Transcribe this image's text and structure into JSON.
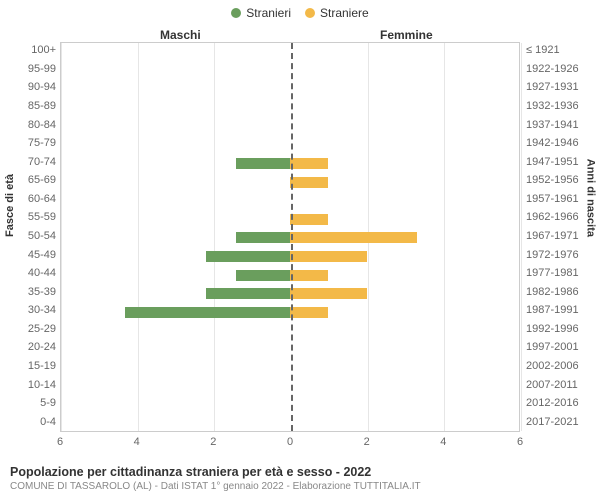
{
  "chart": {
    "type": "population-pyramid",
    "legend": {
      "male": {
        "label": "Stranieri",
        "color": "#6a9e5d"
      },
      "female": {
        "label": "Straniere",
        "color": "#f3b948"
      }
    },
    "column_headers": {
      "left": "Maschi",
      "right": "Femmine"
    },
    "x_axis": {
      "max": 6,
      "ticks": [
        6,
        4,
        2,
        0,
        2,
        4,
        6
      ]
    },
    "y_axis_left_label": "Fasce di età",
    "y_axis_right_label": "Anni di nascita",
    "grid_color": "#e6e6e6",
    "zero_line_color": "#666666",
    "background": "#ffffff",
    "label_fontsize": 11,
    "rows": [
      {
        "age": "100+",
        "birth": "≤ 1921",
        "m": 0,
        "f": 0
      },
      {
        "age": "95-99",
        "birth": "1922-1926",
        "m": 0,
        "f": 0
      },
      {
        "age": "90-94",
        "birth": "1927-1931",
        "m": 0,
        "f": 0
      },
      {
        "age": "85-89",
        "birth": "1932-1936",
        "m": 0,
        "f": 0
      },
      {
        "age": "80-84",
        "birth": "1937-1941",
        "m": 0,
        "f": 0
      },
      {
        "age": "75-79",
        "birth": "1942-1946",
        "m": 0,
        "f": 0
      },
      {
        "age": "70-74",
        "birth": "1947-1951",
        "m": 1.4,
        "f": 1
      },
      {
        "age": "65-69",
        "birth": "1952-1956",
        "m": 0,
        "f": 1
      },
      {
        "age": "60-64",
        "birth": "1957-1961",
        "m": 0,
        "f": 0
      },
      {
        "age": "55-59",
        "birth": "1962-1966",
        "m": 0,
        "f": 1
      },
      {
        "age": "50-54",
        "birth": "1967-1971",
        "m": 1.4,
        "f": 3.3
      },
      {
        "age": "45-49",
        "birth": "1972-1976",
        "m": 2.2,
        "f": 2
      },
      {
        "age": "40-44",
        "birth": "1977-1981",
        "m": 1.4,
        "f": 1
      },
      {
        "age": "35-39",
        "birth": "1982-1986",
        "m": 2.2,
        "f": 2
      },
      {
        "age": "30-34",
        "birth": "1987-1991",
        "m": 4.3,
        "f": 1
      },
      {
        "age": "25-29",
        "birth": "1992-1996",
        "m": 0,
        "f": 0
      },
      {
        "age": "20-24",
        "birth": "1997-2001",
        "m": 0,
        "f": 0
      },
      {
        "age": "15-19",
        "birth": "2002-2006",
        "m": 0,
        "f": 0
      },
      {
        "age": "10-14",
        "birth": "2007-2011",
        "m": 0,
        "f": 0
      },
      {
        "age": "5-9",
        "birth": "2012-2016",
        "m": 0,
        "f": 0
      },
      {
        "age": "0-4",
        "birth": "2017-2021",
        "m": 0,
        "f": 0
      }
    ]
  },
  "footer": {
    "title": "Popolazione per cittadinanza straniera per età e sesso - 2022",
    "subtitle": "COMUNE DI TASSAROLO (AL) - Dati ISTAT 1° gennaio 2022 - Elaborazione TUTTITALIA.IT"
  }
}
